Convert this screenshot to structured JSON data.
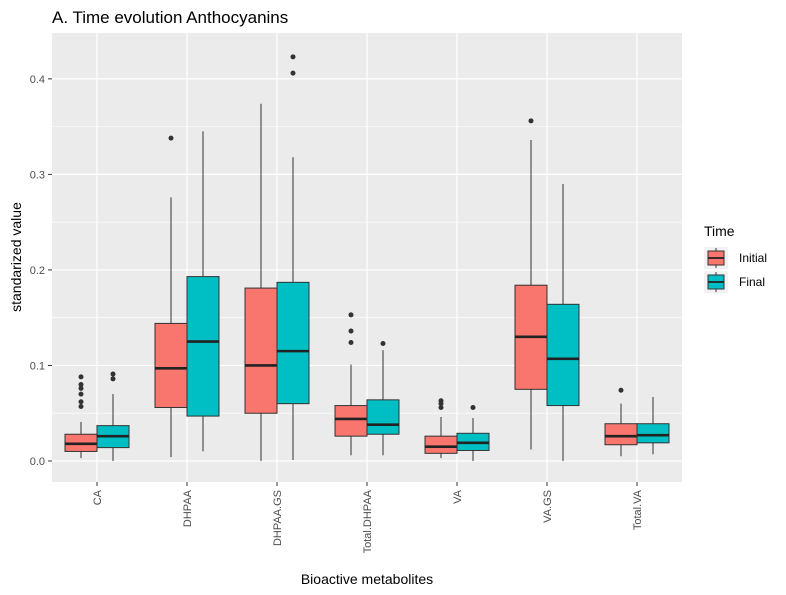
{
  "chart_data": {
    "type": "boxplot",
    "title": "A. Time evolution Anthocyanins",
    "xlabel": "Bioactive metabolites",
    "ylabel": "standarized value",
    "ylim": [
      -0.022,
      0.448
    ],
    "yticks": [
      0.0,
      0.1,
      0.2,
      0.3,
      0.4
    ],
    "ytick_labels": [
      "0.0",
      "0.1",
      "0.2",
      "0.3",
      "0.4"
    ],
    "grid": true,
    "legend": {
      "title": "Time",
      "position": "right",
      "entries": [
        "Initial",
        "Final"
      ]
    },
    "categories": [
      "CA",
      "DHPAA",
      "DHPAA.GS",
      "Total.DHPAA",
      "VA",
      "VA.GS",
      "Total.VA"
    ],
    "colors": {
      "Initial": "#F8766D",
      "Final": "#00BFC4",
      "panel": "#EBEBEB"
    },
    "series": [
      {
        "name": "Initial",
        "boxes": [
          {
            "whisker_low": 0.003,
            "q1": 0.01,
            "median": 0.018,
            "q3": 0.028,
            "whisker_high": 0.041,
            "outliers": [
              0.057,
              0.062,
              0.07,
              0.076,
              0.08,
              0.088
            ]
          },
          {
            "whisker_low": 0.004,
            "q1": 0.056,
            "median": 0.097,
            "q3": 0.144,
            "whisker_high": 0.276,
            "outliers": [
              0.338
            ]
          },
          {
            "whisker_low": 0.0,
            "q1": 0.05,
            "median": 0.1,
            "q3": 0.181,
            "whisker_high": 0.374,
            "outliers": []
          },
          {
            "whisker_low": 0.006,
            "q1": 0.026,
            "median": 0.044,
            "q3": 0.058,
            "whisker_high": 0.101,
            "outliers": [
              0.124,
              0.136,
              0.153
            ]
          },
          {
            "whisker_low": 0.003,
            "q1": 0.008,
            "median": 0.015,
            "q3": 0.026,
            "whisker_high": 0.046,
            "outliers": [
              0.056,
              0.06,
              0.063
            ]
          },
          {
            "whisker_low": 0.012,
            "q1": 0.075,
            "median": 0.13,
            "q3": 0.184,
            "whisker_high": 0.336,
            "outliers": [
              0.356
            ]
          },
          {
            "whisker_low": 0.005,
            "q1": 0.017,
            "median": 0.026,
            "q3": 0.039,
            "whisker_high": 0.06,
            "outliers": [
              0.074
            ]
          }
        ]
      },
      {
        "name": "Final",
        "boxes": [
          {
            "whisker_low": 0.0,
            "q1": 0.014,
            "median": 0.026,
            "q3": 0.037,
            "whisker_high": 0.07,
            "outliers": [
              0.086,
              0.091
            ]
          },
          {
            "whisker_low": 0.01,
            "q1": 0.047,
            "median": 0.125,
            "q3": 0.193,
            "whisker_high": 0.345,
            "outliers": []
          },
          {
            "whisker_low": 0.001,
            "q1": 0.06,
            "median": 0.115,
            "q3": 0.187,
            "whisker_high": 0.318,
            "outliers": [
              0.406,
              0.423
            ]
          },
          {
            "whisker_low": 0.006,
            "q1": 0.028,
            "median": 0.038,
            "q3": 0.064,
            "whisker_high": 0.116,
            "outliers": [
              0.123
            ]
          },
          {
            "whisker_low": 0.0,
            "q1": 0.011,
            "median": 0.019,
            "q3": 0.029,
            "whisker_high": 0.045,
            "outliers": [
              0.056
            ]
          },
          {
            "whisker_low": 0.0,
            "q1": 0.058,
            "median": 0.107,
            "q3": 0.164,
            "whisker_high": 0.29,
            "outliers": []
          },
          {
            "whisker_low": 0.007,
            "q1": 0.019,
            "median": 0.027,
            "q3": 0.039,
            "whisker_high": 0.067,
            "outliers": []
          }
        ]
      }
    ]
  }
}
